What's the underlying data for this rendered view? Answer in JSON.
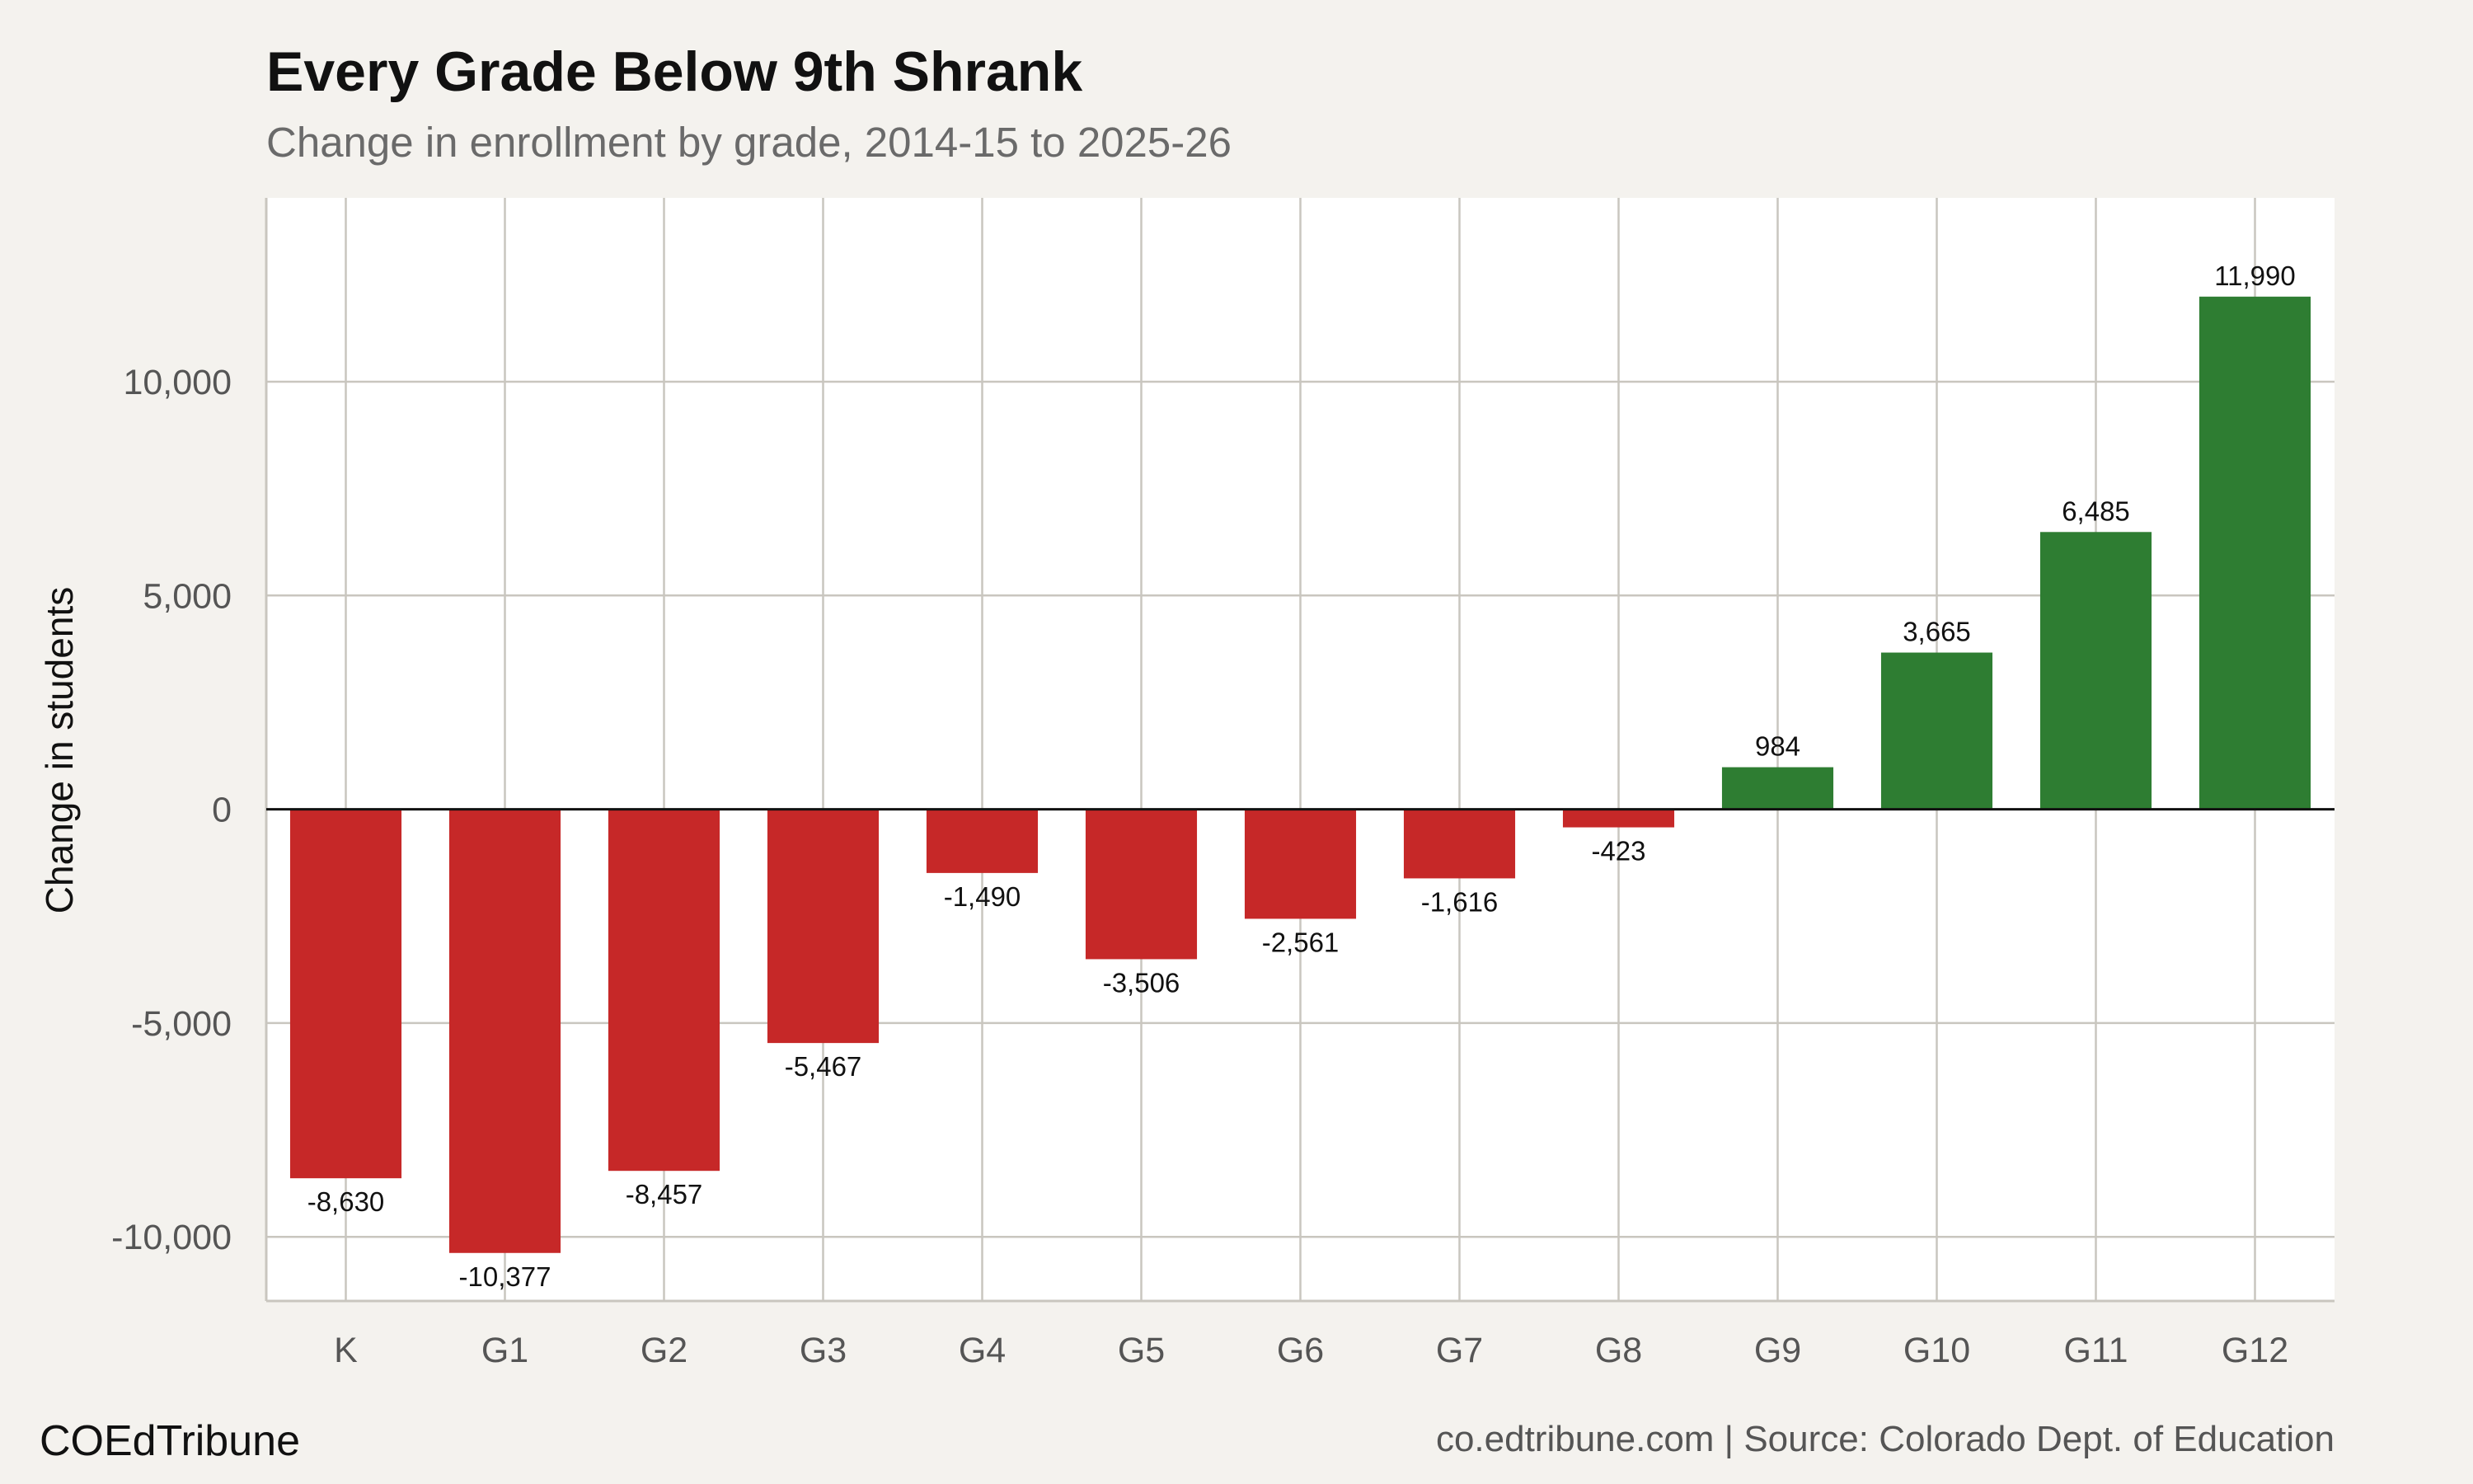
{
  "chart_data": {
    "type": "bar",
    "title": "Every Grade Below 9th Shrank",
    "subtitle": "Change in enrollment by grade, 2014-15 to 2025-26",
    "xlabel": "",
    "ylabel": "Change in students",
    "categories": [
      "K",
      "G1",
      "G2",
      "G3",
      "G4",
      "G5",
      "G6",
      "G7",
      "G8",
      "G9",
      "G10",
      "G11",
      "G12"
    ],
    "values": [
      -8630,
      -10377,
      -8457,
      -5467,
      -1490,
      -3506,
      -2561,
      -1616,
      -423,
      984,
      3665,
      6485,
      11990
    ],
    "value_labels": [
      "-8,630",
      "-10,377",
      "-8,457",
      "-5,467",
      "-1,490",
      "-3,506",
      "-2,561",
      "-1,616",
      "-423",
      "984",
      "3,665",
      "6,485",
      "11,990"
    ],
    "ylim": [
      -11500,
      14300
    ],
    "yticks": [
      -10000,
      -5000,
      0,
      5000,
      10000
    ],
    "ytick_labels": [
      "-10,000",
      "-5,000",
      "0",
      "5,000",
      "10,000"
    ],
    "grid": true,
    "colors": {
      "negative": "#c62828",
      "positive": "#2e7d32",
      "panel": "#ffffff",
      "background": "#f4f2ee"
    }
  },
  "footer": {
    "brand": "COEdTribune",
    "source": "co.edtribune.com | Source: Colorado Dept. of Education"
  }
}
